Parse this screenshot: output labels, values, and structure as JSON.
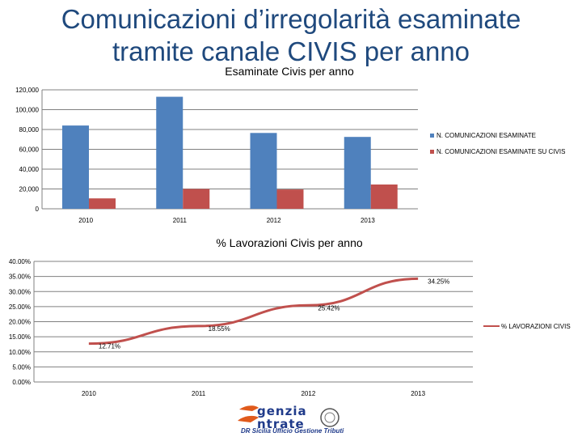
{
  "page": {
    "title_line1": "Comunicazioni d’irregolarità esaminate",
    "title_line2": "tramite canale CIVIS per anno"
  },
  "chart_data": [
    {
      "type": "bar",
      "title": "Esaminate Civis per anno",
      "categories": [
        "2010",
        "2011",
        "2012",
        "2013"
      ],
      "series": [
        {
          "name": "N. COMUNICAZIONI ESAMINATE",
          "color": "#4f81bd",
          "values": [
            84000,
            113000,
            76500,
            72500
          ]
        },
        {
          "name": "N. COMUNICAZIONI ESAMINATE SU CIVIS",
          "color": "#c0504d",
          "values": [
            10500,
            20000,
            19500,
            24500
          ]
        }
      ],
      "ylim": [
        0,
        120000
      ],
      "yticks": [
        "0",
        "20,000",
        "40,000",
        "60,000",
        "80,000",
        "100,000",
        "120,000"
      ],
      "grid": true,
      "legend": "right"
    },
    {
      "type": "line",
      "title": "% Lavorazioni Civis per anno",
      "categories": [
        "2010",
        "2011",
        "2012",
        "2013"
      ],
      "series": [
        {
          "name": "% LAVORAZIONI CIVIS",
          "color": "#c0504d",
          "values": [
            12.71,
            18.55,
            25.42,
            34.25
          ],
          "labels": [
            "12.71%",
            "18.55%",
            "25.42%",
            "34.25%"
          ]
        }
      ],
      "ylim": [
        0,
        40
      ],
      "yticks": [
        "0.00%",
        "5.00%",
        "10.00%",
        "15.00%",
        "20.00%",
        "25.00%",
        "30.00%",
        "35.00%",
        "40.00%"
      ],
      "grid": true,
      "legend": "right"
    }
  ],
  "footer": {
    "logo_line1": "genzia",
    "logo_line2": "ntrate",
    "logo_sub": "DR Sicilia Ufficio Gestione Tributi"
  }
}
